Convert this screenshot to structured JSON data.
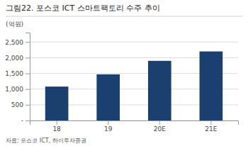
{
  "chart_data": {
    "type": "bar",
    "title": "그림22. 포스코 ICT 스마트팩토리 수주 추이",
    "ylabel": "(억원)",
    "source": "자료: 포스코 ICT, 하이투자증권",
    "categories": [
      "18",
      "19",
      "20E",
      "21E"
    ],
    "values": [
      1080,
      1470,
      1900,
      2200
    ],
    "color": "#1b3f6e",
    "ylim": [
      0,
      2800
    ],
    "yticks": [
      {
        "value": 0,
        "label": "-"
      },
      500,
      {
        "value": 1000,
        "label": "1,000"
      },
      {
        "value": 1500,
        "label": "1,500"
      },
      {
        "value": 2000,
        "label": "2,000"
      },
      {
        "value": 2500,
        "label": "2,500"
      }
    ],
    "grid": true
  }
}
